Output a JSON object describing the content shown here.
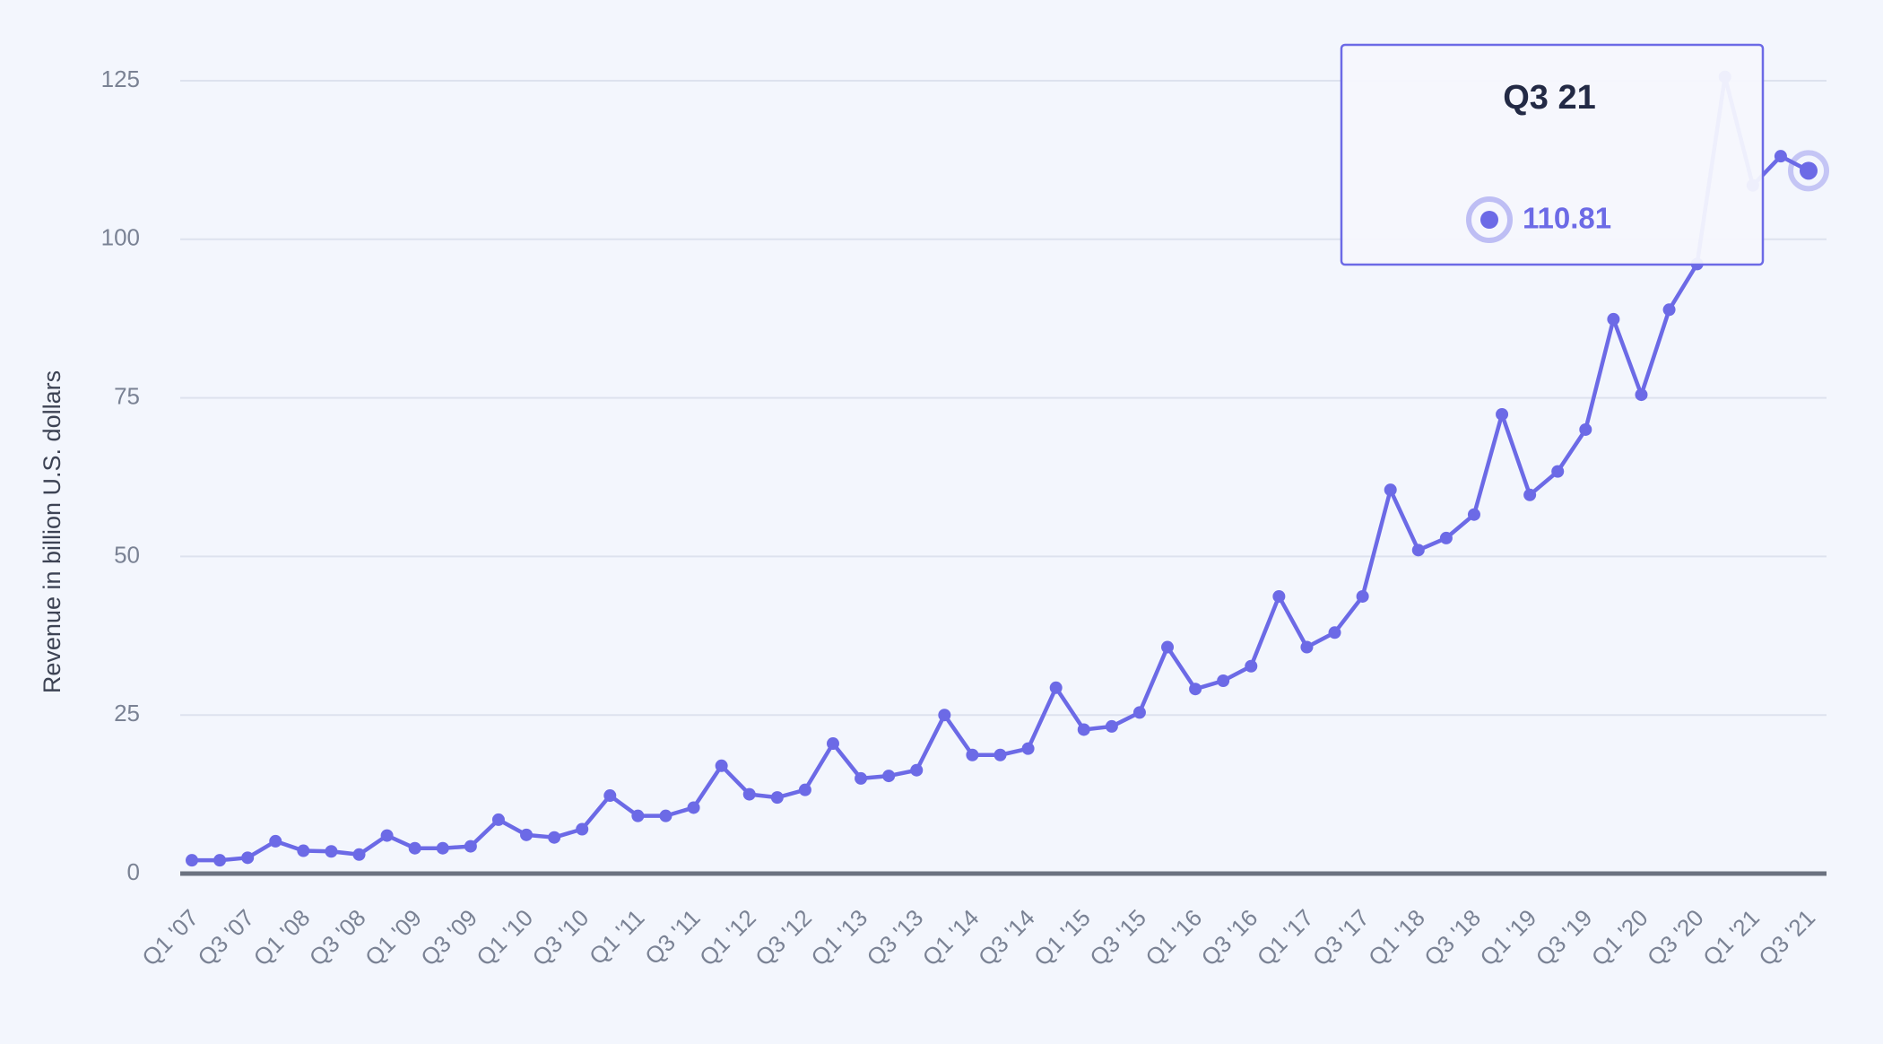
{
  "chart_data": {
    "type": "line",
    "y_label": "Revenue in billion U.S. dollars",
    "categories": [
      "Q1 '07",
      null,
      "Q3 '07",
      null,
      "Q1 '08",
      null,
      "Q3 '08",
      null,
      "Q1 '09",
      null,
      "Q3 '09",
      null,
      "Q1 '10",
      null,
      "Q3 '10",
      null,
      "Q1 '11",
      null,
      "Q3 '11",
      null,
      "Q1 '12",
      null,
      "Q3 '12",
      null,
      "Q1 '13",
      null,
      "Q3 '13",
      null,
      "Q1 '14",
      null,
      "Q3 '14",
      null,
      "Q1 '15",
      null,
      "Q3 '15",
      null,
      "Q1 '16",
      null,
      "Q3 '16",
      null,
      "Q1 '17",
      null,
      "Q3 '17",
      null,
      "Q1 '18",
      null,
      "Q3 '18",
      null,
      "Q1 '19",
      null,
      "Q3 '19",
      null,
      "Q1 '20",
      null,
      "Q3 '20",
      null,
      "Q1 '21",
      null,
      "Q3 '21"
    ],
    "values": [
      2.1,
      2.1,
      2.5,
      5.1,
      3.6,
      3.5,
      3.0,
      6.0,
      4.0,
      4.0,
      4.3,
      8.5,
      6.1,
      5.7,
      7.0,
      12.3,
      9.1,
      9.1,
      10.4,
      17.0,
      12.5,
      12.0,
      13.2,
      20.5,
      15.0,
      15.4,
      16.3,
      25.0,
      18.7,
      18.7,
      19.7,
      29.3,
      22.7,
      23.2,
      25.4,
      35.7,
      29.1,
      30.4,
      32.7,
      43.7,
      35.7,
      38.0,
      43.7,
      60.5,
      51.0,
      52.9,
      56.6,
      72.4,
      59.7,
      63.4,
      70.0,
      87.4,
      75.5,
      88.9,
      96.1,
      125.6,
      108.5,
      113.1,
      110.81
    ],
    "color": "#6c6ae6",
    "ylim": [
      0,
      130
    ],
    "yticks": [
      0,
      25,
      50,
      75,
      100,
      125
    ],
    "grid": true,
    "tooltip_title": "Q3 21"
  }
}
